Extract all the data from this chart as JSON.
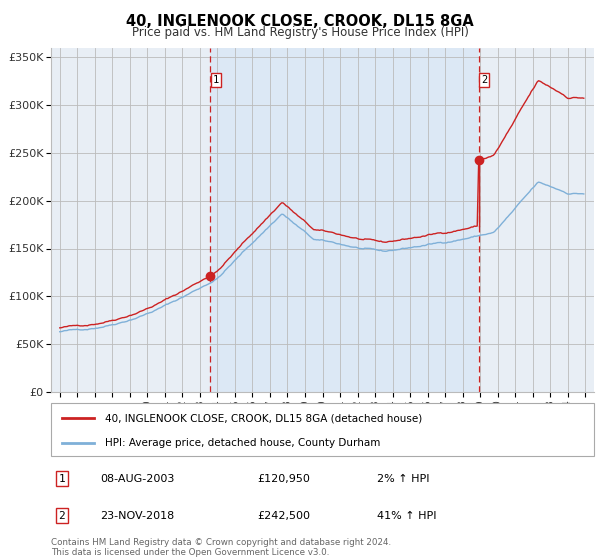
{
  "title": "40, INGLENOOK CLOSE, CROOK, DL15 8GA",
  "subtitle": "Price paid vs. HM Land Registry's House Price Index (HPI)",
  "purchase1_date": "08-AUG-2003",
  "purchase1_year": 2003.6,
  "purchase1_price": 120950,
  "purchase1_pct": "2%",
  "purchase2_date": "23-NOV-2018",
  "purchase2_year": 2018.9,
  "purchase2_price": 242500,
  "purchase2_pct": "41%",
  "legend1": "40, INGLENOOK CLOSE, CROOK, DL15 8GA (detached house)",
  "legend2": "HPI: Average price, detached house, County Durham",
  "footnote": "Contains HM Land Registry data © Crown copyright and database right 2024.\nThis data is licensed under the Open Government Licence v3.0.",
  "hpi_color": "#7fb0d8",
  "property_color": "#cc2222",
  "bg_shaded": "#dce8f5",
  "bg_outer": "#e8eef5",
  "bg_white": "#f8f8f8",
  "grid_color": "#bbbbbb",
  "ylim": [
    0,
    360000
  ],
  "yticks": [
    0,
    50000,
    100000,
    150000,
    200000,
    250000,
    300000,
    350000
  ],
  "ytick_labels": [
    "£0",
    "£50K",
    "£100K",
    "£150K",
    "£200K",
    "£250K",
    "£300K",
    "£350K"
  ],
  "xstart": 1994.5,
  "xend": 2025.5
}
